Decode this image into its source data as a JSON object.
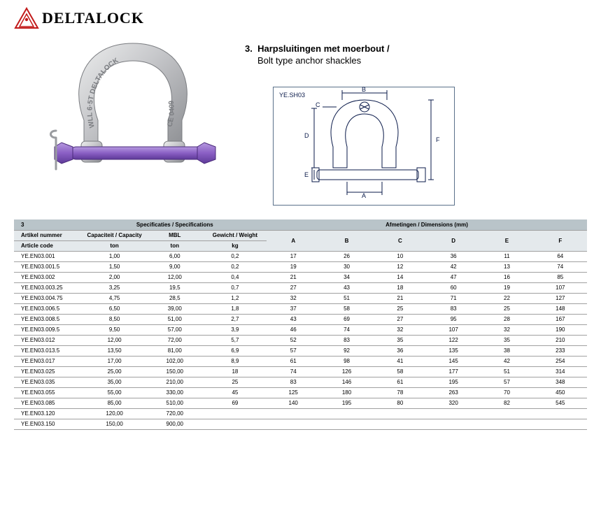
{
  "brand": {
    "name": "DELTALOCK",
    "logo_color": "#c21a1a"
  },
  "heading": {
    "number": "3.",
    "title_nl": "Harpsluitingen met moerbout /",
    "title_en": "Bolt type anchor shackles"
  },
  "diagram": {
    "code": "YE.SH03",
    "labels": [
      "A",
      "B",
      "C",
      "D",
      "E",
      "F"
    ]
  },
  "table": {
    "section_label": "3",
    "group_spec": "Specificaties / Specifications",
    "group_dim": "Afmetingen / Dimensions (mm)",
    "col_article_nl": "Artikel nummer",
    "col_article_en": "Article code",
    "col_capacity": "Capaciteit / Capacity",
    "col_capacity_unit": "ton",
    "col_mbl": "MBL",
    "col_mbl_unit": "ton",
    "col_weight": "Gewicht / Weight",
    "col_weight_unit": "kg",
    "col_A": "A",
    "col_B": "B",
    "col_C": "C",
    "col_D": "D",
    "col_E": "E",
    "col_F": "F",
    "rows": [
      {
        "code": "YE.EN03.001",
        "cap": "1,00",
        "mbl": "6,00",
        "wt": "0,2",
        "A": "17",
        "B": "26",
        "C": "10",
        "D": "36",
        "E": "11",
        "F": "64"
      },
      {
        "code": "YE.EN03.001.5",
        "cap": "1,50",
        "mbl": "9,00",
        "wt": "0,2",
        "A": "19",
        "B": "30",
        "C": "12",
        "D": "42",
        "E": "13",
        "F": "74"
      },
      {
        "code": "YE.EN03.002",
        "cap": "2,00",
        "mbl": "12,00",
        "wt": "0,4",
        "A": "21",
        "B": "34",
        "C": "14",
        "D": "47",
        "E": "16",
        "F": "85"
      },
      {
        "code": "YE.EN03.003.25",
        "cap": "3,25",
        "mbl": "19,5",
        "wt": "0,7",
        "A": "27",
        "B": "43",
        "C": "18",
        "D": "60",
        "E": "19",
        "F": "107"
      },
      {
        "code": "YE.EN03.004.75",
        "cap": "4,75",
        "mbl": "28,5",
        "wt": "1,2",
        "A": "32",
        "B": "51",
        "C": "21",
        "D": "71",
        "E": "22",
        "F": "127"
      },
      {
        "code": "YE.EN03.006.5",
        "cap": "6,50",
        "mbl": "39,00",
        "wt": "1,8",
        "A": "37",
        "B": "58",
        "C": "25",
        "D": "83",
        "E": "25",
        "F": "148"
      },
      {
        "code": "YE.EN03.008.5",
        "cap": "8,50",
        "mbl": "51,00",
        "wt": "2,7",
        "A": "43",
        "B": "69",
        "C": "27",
        "D": "95",
        "E": "28",
        "F": "167"
      },
      {
        "code": "YE.EN03.009.5",
        "cap": "9,50",
        "mbl": "57,00",
        "wt": "3,9",
        "A": "46",
        "B": "74",
        "C": "32",
        "D": "107",
        "E": "32",
        "F": "190"
      },
      {
        "code": "YE.EN03.012",
        "cap": "12,00",
        "mbl": "72,00",
        "wt": "5,7",
        "A": "52",
        "B": "83",
        "C": "35",
        "D": "122",
        "E": "35",
        "F": "210"
      },
      {
        "code": "YE.EN03.013.5",
        "cap": "13,50",
        "mbl": "81,00",
        "wt": "6,9",
        "A": "57",
        "B": "92",
        "C": "36",
        "D": "135",
        "E": "38",
        "F": "233"
      },
      {
        "code": "YE.EN03.017",
        "cap": "17,00",
        "mbl": "102,00",
        "wt": "8,9",
        "A": "61",
        "B": "98",
        "C": "41",
        "D": "145",
        "E": "42",
        "F": "254"
      },
      {
        "code": "YE.EN03.025",
        "cap": "25,00",
        "mbl": "150,00",
        "wt": "18",
        "A": "74",
        "B": "126",
        "C": "58",
        "D": "177",
        "E": "51",
        "F": "314"
      },
      {
        "code": "YE.EN03.035",
        "cap": "35,00",
        "mbl": "210,00",
        "wt": "25",
        "A": "83",
        "B": "146",
        "C": "61",
        "D": "195",
        "E": "57",
        "F": "348"
      },
      {
        "code": "YE.EN03.055",
        "cap": "55,00",
        "mbl": "330,00",
        "wt": "45",
        "A": "125",
        "B": "180",
        "C": "78",
        "D": "263",
        "E": "70",
        "F": "450"
      },
      {
        "code": "YE.EN03.085",
        "cap": "85,00",
        "mbl": "510,00",
        "wt": "69",
        "A": "140",
        "B": "195",
        "C": "80",
        "D": "320",
        "E": "82",
        "F": "545"
      },
      {
        "code": "YE.EN03.120",
        "cap": "120,00",
        "mbl": "720,00",
        "wt": "",
        "A": "",
        "B": "",
        "C": "",
        "D": "",
        "E": "",
        "F": ""
      },
      {
        "code": "YE.EN03.150",
        "cap": "150,00",
        "mbl": "900,00",
        "wt": "",
        "A": "",
        "B": "",
        "C": "",
        "D": "",
        "E": "",
        "F": ""
      }
    ]
  },
  "colors": {
    "bolt_purple": "#8a5fc4",
    "steel_grey": "#c8c9cc",
    "steel_dark": "#9a9ca0",
    "header_bg": "#b9c4c9",
    "subheader_bg": "#e4e9ec",
    "diagram_border": "#5a718a",
    "text": "#000000"
  }
}
